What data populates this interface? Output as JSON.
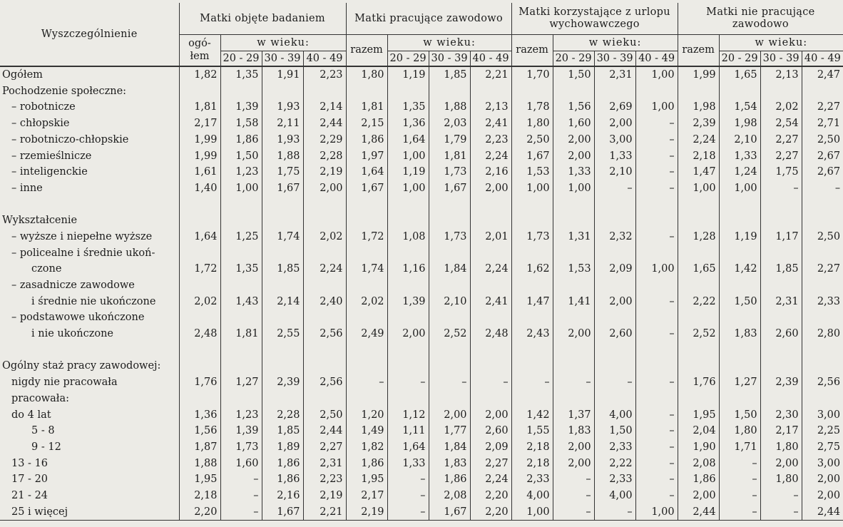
{
  "header": {
    "stub": "Wyszczególnienie",
    "groups": [
      "Matki objęte badaniem",
      "Matki pracujące zawodowo",
      "Matki korzystające z urlopu wychowawczego",
      "Matki nie pracujące zawodowo"
    ],
    "first_total": "ogó-łem",
    "total": "razem",
    "age_label": "w wieku:",
    "ages": [
      "20 - 29",
      "30 - 39",
      "40 - 49"
    ]
  },
  "rows": [
    {
      "label": "Ogółem",
      "indent": 0,
      "values": [
        "1,82",
        "1,35",
        "1,91",
        "2,23",
        "1,80",
        "1,19",
        "1,85",
        "2,21",
        "1,70",
        "1,50",
        "2,31",
        "1,00",
        "1,99",
        "1,65",
        "2,13",
        "2,47"
      ]
    },
    {
      "label": "Pochodzenie społeczne:",
      "indent": 0,
      "values": []
    },
    {
      "label": "– robotnicze",
      "indent": 1,
      "values": [
        "1,81",
        "1,39",
        "1,93",
        "2,14",
        "1,81",
        "1,35",
        "1,88",
        "2,13",
        "1,78",
        "1,56",
        "2,69",
        "1,00",
        "1,98",
        "1,54",
        "2,02",
        "2,27"
      ]
    },
    {
      "label": "– chłopskie",
      "indent": 1,
      "values": [
        "2,17",
        "1,58",
        "2,11",
        "2,44",
        "2,15",
        "1,36",
        "2,03",
        "2,41",
        "1,80",
        "1,60",
        "2,00",
        "–",
        "2,39",
        "1,98",
        "2,54",
        "2,71"
      ]
    },
    {
      "label": "– robotniczo-chłopskie",
      "indent": 1,
      "values": [
        "1,99",
        "1,86",
        "1,93",
        "2,29",
        "1,86",
        "1,64",
        "1,79",
        "2,23",
        "2,50",
        "2,00",
        "3,00",
        "–",
        "2,24",
        "2,10",
        "2,27",
        "2,50"
      ]
    },
    {
      "label": "– rzemieślnicze",
      "indent": 1,
      "values": [
        "1,99",
        "1,50",
        "1,88",
        "2,28",
        "1,97",
        "1,00",
        "1,81",
        "2,24",
        "1,67",
        "2,00",
        "1,33",
        "–",
        "2,18",
        "1,33",
        "2,27",
        "2,67"
      ]
    },
    {
      "label": "– inteligenckie",
      "indent": 1,
      "values": [
        "1,61",
        "1,23",
        "1,75",
        "2,19",
        "1,64",
        "1,19",
        "1,73",
        "2,16",
        "1,53",
        "1,33",
        "2,10",
        "–",
        "1,47",
        "1,24",
        "1,75",
        "2,67"
      ]
    },
    {
      "label": "– inne",
      "indent": 1,
      "values": [
        "1,40",
        "1,00",
        "1,67",
        "2,00",
        "1,67",
        "1,00",
        "1,67",
        "2,00",
        "1,00",
        "1,00",
        "–",
        "–",
        "1,00",
        "1,00",
        "–",
        "–"
      ]
    },
    {
      "label": "",
      "indent": 0,
      "values": []
    },
    {
      "label": "Wykształcenie",
      "indent": 0,
      "values": []
    },
    {
      "label": "– wyższe i niepełne wyższe",
      "indent": 1,
      "values": [
        "1,64",
        "1,25",
        "1,74",
        "2,02",
        "1,72",
        "1,08",
        "1,73",
        "2,01",
        "1,73",
        "1,31",
        "2,32",
        "–",
        "1,28",
        "1,19",
        "1,17",
        "2,50"
      ]
    },
    {
      "label": "– policealne i średnie ukoń-",
      "indent": 1,
      "values": []
    },
    {
      "label": "czone",
      "indent": 2,
      "values": [
        "1,72",
        "1,35",
        "1,85",
        "2,24",
        "1,74",
        "1,16",
        "1,84",
        "2,24",
        "1,62",
        "1,53",
        "2,09",
        "1,00",
        "1,65",
        "1,42",
        "1,85",
        "2,27"
      ]
    },
    {
      "label": "– zasadnicze zawodowe",
      "indent": 1,
      "values": []
    },
    {
      "label": "i średnie nie ukończone",
      "indent": 2,
      "values": [
        "2,02",
        "1,43",
        "2,14",
        "2,40",
        "2,02",
        "1,39",
        "2,10",
        "2,41",
        "1,47",
        "1,41",
        "2,00",
        "–",
        "2,22",
        "1,50",
        "2,31",
        "2,33"
      ]
    },
    {
      "label": "– podstawowe ukończone",
      "indent": 1,
      "values": []
    },
    {
      "label": "i nie ukończone",
      "indent": 2,
      "values": [
        "2,48",
        "1,81",
        "2,55",
        "2,56",
        "2,49",
        "2,00",
        "2,52",
        "2,48",
        "2,43",
        "2,00",
        "2,60",
        "–",
        "2,52",
        "1,83",
        "2,60",
        "2,80"
      ]
    },
    {
      "label": "",
      "indent": 0,
      "values": []
    },
    {
      "label": "Ogólny staż pracy zawodowej:",
      "indent": 0,
      "values": []
    },
    {
      "label": "nigdy nie pracowała",
      "indent": 1,
      "values": [
        "1,76",
        "1,27",
        "2,39",
        "2,56",
        "–",
        "–",
        "–",
        "–",
        "–",
        "–",
        "–",
        "–",
        "1,76",
        "1,27",
        "2,39",
        "2,56"
      ]
    },
    {
      "label": "pracowała:",
      "indent": 1,
      "values": []
    },
    {
      "label": "do 4 lat",
      "indent": 1,
      "values": [
        "1,36",
        "1,23",
        "2,28",
        "2,50",
        "1,20",
        "1,12",
        "2,00",
        "2,00",
        "1,42",
        "1,37",
        "4,00",
        "–",
        "1,95",
        "1,50",
        "2,30",
        "3,00"
      ]
    },
    {
      "label": "5 - 8",
      "indent": 2,
      "values": [
        "1,56",
        "1,39",
        "1,85",
        "2,44",
        "1,49",
        "1,11",
        "1,77",
        "2,60",
        "1,55",
        "1,83",
        "1,50",
        "–",
        "2,04",
        "1,80",
        "2,17",
        "2,25"
      ]
    },
    {
      "label": "9 - 12",
      "indent": 2,
      "values": [
        "1,87",
        "1,73",
        "1,89",
        "2,27",
        "1,82",
        "1,64",
        "1,84",
        "2,09",
        "2,18",
        "2,00",
        "2,33",
        "–",
        "1,90",
        "1,71",
        "1,80",
        "2,75"
      ]
    },
    {
      "label": "13 - 16",
      "indent": 1,
      "values": [
        "1,88",
        "1,60",
        "1,86",
        "2,31",
        "1,86",
        "1,33",
        "1,83",
        "2,27",
        "2,18",
        "2,00",
        "2,22",
        "–",
        "2,08",
        "–",
        "2,00",
        "3,00"
      ]
    },
    {
      "label": "17 - 20",
      "indent": 1,
      "values": [
        "1,95",
        "–",
        "1,86",
        "2,23",
        "1,95",
        "–",
        "1,86",
        "2,24",
        "2,33",
        "–",
        "2,33",
        "–",
        "1,86",
        "–",
        "1,80",
        "2,00"
      ]
    },
    {
      "label": "21 - 24",
      "indent": 1,
      "values": [
        "2,18",
        "–",
        "2,16",
        "2,19",
        "2,17",
        "–",
        "2,08",
        "2,20",
        "4,00",
        "–",
        "4,00",
        "–",
        "2,00",
        "–",
        "–",
        "2,00"
      ]
    },
    {
      "label": "25 i więcej",
      "indent": 1,
      "values": [
        "2,20",
        "–",
        "1,67",
        "2,21",
        "2,19",
        "–",
        "1,67",
        "2,20",
        "1,00",
        "–",
        "–",
        "1,00",
        "2,44",
        "–",
        "–",
        "2,44"
      ]
    }
  ]
}
